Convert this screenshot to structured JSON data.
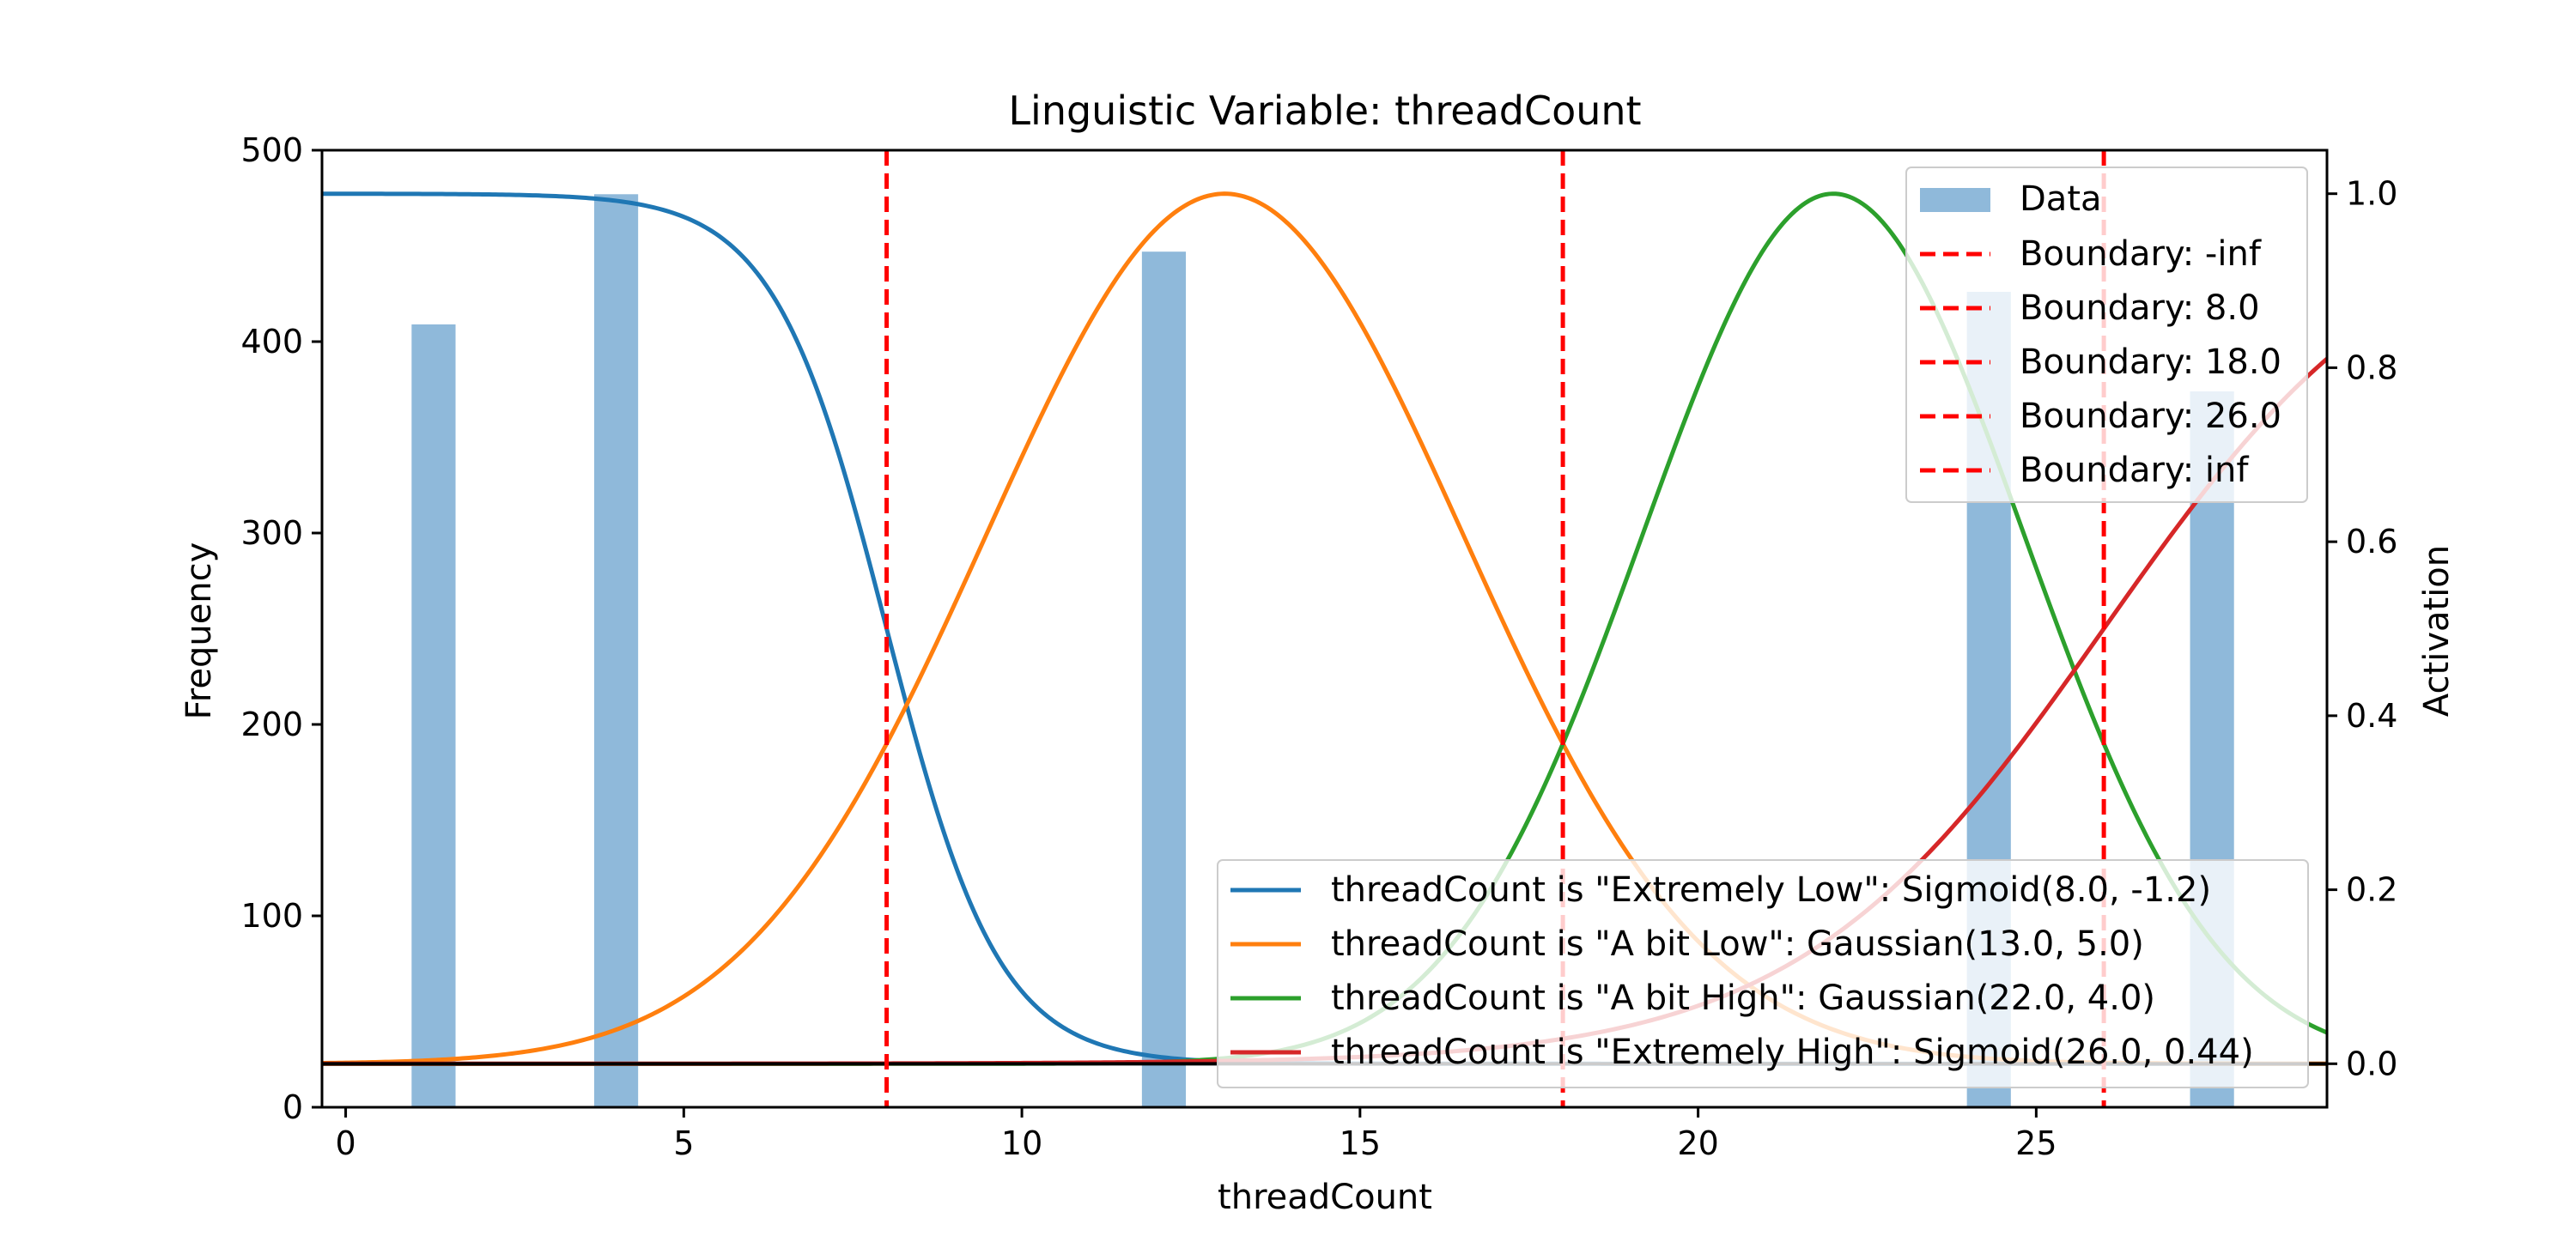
{
  "chart_data": {
    "type": "bar+line",
    "title": "Linguistic Variable: threadCount",
    "xlabel": "threadCount",
    "ylabel_left": "Frequency",
    "ylabel_right": "Activation",
    "xlim": [
      -0.35,
      29.3
    ],
    "ylim_left": [
      0,
      500
    ],
    "ylim_right": [
      -0.05,
      1.05
    ],
    "x_ticks": [
      0,
      5,
      10,
      15,
      20,
      25
    ],
    "y_ticks_left": [
      0,
      100,
      200,
      300,
      400,
      500
    ],
    "y_ticks_right": [
      0.0,
      0.2,
      0.4,
      0.6,
      0.8,
      1.0
    ],
    "bars": {
      "name": "Data",
      "color": "#8fb9da",
      "width": 0.65,
      "x": [
        1.3,
        4.0,
        12.1,
        24.3,
        27.6
      ],
      "values": [
        409,
        477,
        447,
        426,
        374
      ]
    },
    "boundaries": {
      "color": "#ff0000",
      "x": [
        8.0,
        18.0,
        26.0
      ],
      "legend": [
        "Boundary: -inf",
        "Boundary: 8.0",
        "Boundary: 18.0",
        "Boundary: 26.0",
        "Boundary: inf"
      ]
    },
    "series": [
      {
        "name": "threadCount is \"Extremely Low\": Sigmoid(8.0, -1.2)",
        "color": "#1f77b4",
        "kind": "sigmoid",
        "center": 8.0,
        "slope": -1.2
      },
      {
        "name": "threadCount is \"A bit Low\": Gaussian(13.0, 5.0)",
        "color": "#ff7f0e",
        "kind": "gaussian",
        "center": 13.0,
        "width": 5.0
      },
      {
        "name": "threadCount is \"A bit High\": Gaussian(22.0, 4.0)",
        "color": "#2ca02c",
        "kind": "gaussian",
        "center": 22.0,
        "width": 4.0
      },
      {
        "name": "threadCount is \"Extremely High\": Sigmoid(26.0, 0.44)",
        "color": "#d62728",
        "kind": "sigmoid",
        "center": 26.0,
        "slope": 0.44
      }
    ],
    "baseline": {
      "y": 0.0,
      "color": "#000000"
    },
    "legend_top": "upper right",
    "legend_bottom": "lower right",
    "grid": false
  }
}
